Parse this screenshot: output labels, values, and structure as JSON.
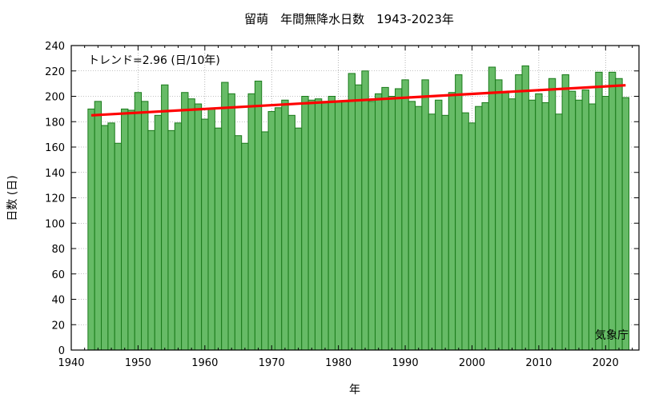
{
  "chart_data": {
    "type": "bar",
    "title": "留萌　年間無降水日数　1943-2023年",
    "xlabel": "年",
    "ylabel": "日数 (日)",
    "xlim": [
      1940,
      2025
    ],
    "ylim": [
      0,
      240
    ],
    "x_ticks": [
      1940,
      1950,
      1960,
      1970,
      1980,
      1990,
      2000,
      2010,
      2020
    ],
    "y_ticks": [
      0,
      20,
      40,
      60,
      80,
      100,
      120,
      140,
      160,
      180,
      200,
      220,
      240
    ],
    "grid": true,
    "trend_label": "トレンド=2.96 (日/10年)",
    "trend_line": {
      "x": [
        1943,
        2023
      ],
      "y": [
        185,
        208.7
      ],
      "color": "#ff0000"
    },
    "credit": "気象庁",
    "bar_fill": "#66bb66",
    "bar_stroke": "#1a7a1a",
    "years": [
      1943,
      1944,
      1945,
      1946,
      1947,
      1948,
      1949,
      1950,
      1951,
      1952,
      1953,
      1954,
      1955,
      1956,
      1957,
      1958,
      1959,
      1960,
      1961,
      1962,
      1963,
      1964,
      1965,
      1966,
      1967,
      1968,
      1969,
      1970,
      1971,
      1972,
      1973,
      1974,
      1975,
      1976,
      1977,
      1978,
      1979,
      1980,
      1981,
      1982,
      1983,
      1984,
      1985,
      1986,
      1987,
      1988,
      1989,
      1990,
      1991,
      1992,
      1993,
      1994,
      1995,
      1996,
      1997,
      1998,
      1999,
      2000,
      2001,
      2002,
      2003,
      2004,
      2005,
      2006,
      2007,
      2008,
      2009,
      2010,
      2011,
      2012,
      2013,
      2014,
      2015,
      2016,
      2017,
      2018,
      2019,
      2020,
      2021,
      2022,
      2023
    ],
    "values": [
      190,
      196,
      177,
      179,
      163,
      190,
      189,
      203,
      196,
      173,
      185,
      209,
      173,
      179,
      203,
      198,
      194,
      182,
      190,
      175,
      211,
      202,
      169,
      163,
      202,
      212,
      172,
      188,
      191,
      197,
      185,
      175,
      200,
      197,
      198,
      196,
      200,
      196,
      196,
      218,
      209,
      220,
      196,
      202,
      207,
      200,
      206,
      213,
      196,
      192,
      213,
      186,
      197,
      185,
      203,
      217,
      187,
      179,
      192,
      195,
      223,
      213,
      203,
      198,
      217,
      224,
      197,
      202,
      195,
      214,
      186,
      217,
      204,
      197,
      205,
      194,
      219,
      200,
      219,
      214,
      199
    ]
  }
}
